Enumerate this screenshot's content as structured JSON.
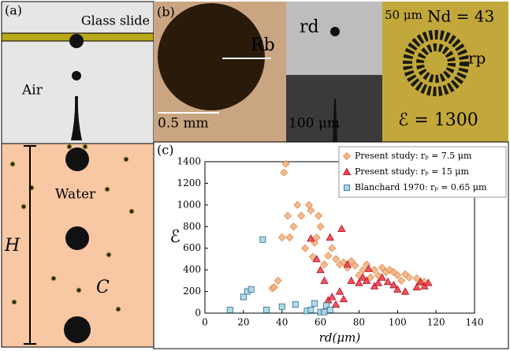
{
  "panels": {
    "a": {
      "label": "(a)",
      "glass": "Glass slide",
      "air": "Air",
      "water": "Water",
      "height": "H",
      "conc": "C"
    },
    "b": {
      "label": "(b)",
      "rb": "Rb",
      "scale1": "0.5 mm",
      "rd": "rd",
      "scale2": "100 μm",
      "scale3": "50 μm",
      "nd": "Nd = 43",
      "rp": "rp",
      "e": "ℰ = 1300"
    },
    "c": {
      "label": "(c)"
    }
  },
  "chart_data": {
    "type": "scatter",
    "xlabel": "rd(μm)",
    "ylabel": "ℰ",
    "xlim": [
      0,
      140
    ],
    "ylim": [
      0,
      1400
    ],
    "xticks": [
      0,
      20,
      40,
      60,
      80,
      100,
      120,
      140
    ],
    "yticks": [
      0,
      200,
      400,
      600,
      800,
      1000,
      1200,
      1400
    ],
    "legend": "upper right",
    "series": [
      {
        "name": "Present study: rₚ = 7.5 μm",
        "color": "#f4b483",
        "marker": "diamond",
        "x": [
          35,
          36,
          38,
          40,
          41,
          42,
          43,
          44,
          46,
          48,
          50,
          52,
          54,
          55,
          56,
          57,
          58,
          59,
          60,
          62,
          64,
          66,
          68,
          70,
          72,
          74,
          76,
          78,
          80,
          82,
          84,
          86,
          88,
          90,
          92,
          94,
          96,
          98,
          100,
          102,
          104,
          106,
          110,
          112,
          114
        ],
        "values": [
          230,
          240,
          300,
          700,
          1300,
          1380,
          900,
          700,
          800,
          1000,
          900,
          600,
          1000,
          950,
          520,
          650,
          700,
          900,
          800,
          450,
          530,
          600,
          500,
          450,
          470,
          420,
          480,
          440,
          350,
          400,
          450,
          330,
          400,
          350,
          420,
          380,
          400,
          380,
          350,
          300,
          360,
          330,
          320,
          280,
          290
        ]
      },
      {
        "name": "Present study: rₚ = 15 μm",
        "color": "#f0404e",
        "marker": "triangle",
        "x": [
          55,
          58,
          60,
          62,
          64,
          65,
          66,
          68,
          70,
          71,
          72,
          74,
          76,
          80,
          82,
          84,
          85,
          88,
          90,
          92,
          95,
          98,
          100,
          104,
          110,
          112,
          114,
          116
        ],
        "values": [
          690,
          500,
          400,
          300,
          120,
          700,
          150,
          80,
          200,
          780,
          130,
          450,
          300,
          280,
          330,
          300,
          410,
          250,
          280,
          330,
          290,
          260,
          220,
          200,
          240,
          290,
          250,
          280
        ]
      },
      {
        "name": "Blanchard 1970: rₚ = 0.65 μm",
        "color": "#a9d6e6",
        "marker": "square",
        "x": [
          13,
          20,
          22,
          24,
          30,
          32,
          40,
          47,
          53,
          55,
          57,
          60,
          62,
          63,
          65
        ],
        "values": [
          30,
          150,
          200,
          220,
          680,
          30,
          60,
          80,
          20,
          30,
          90,
          10,
          10,
          70,
          30
        ]
      }
    ]
  }
}
